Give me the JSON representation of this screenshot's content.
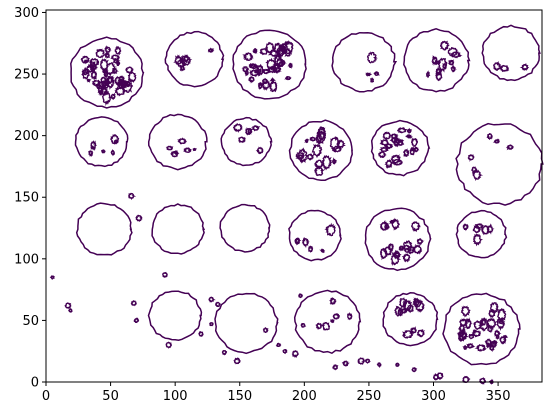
{
  "chart_data": {
    "type": "contour",
    "title": "",
    "xlabel": "",
    "ylabel": "",
    "xlim": [
      0,
      384
    ],
    "ylim": [
      0,
      302
    ],
    "xticks": [
      0,
      50,
      100,
      150,
      200,
      250,
      300,
      350
    ],
    "yticks": [
      0,
      50,
      100,
      150,
      200,
      250,
      300
    ],
    "grid": false,
    "line_color": "#440154",
    "series": [
      {
        "values": [
          {
            "cx": 47,
            "cy": 251,
            "r": 28,
            "dense": 48
          },
          {
            "cx": 115,
            "cy": 262,
            "r": 22,
            "dense": 6
          },
          {
            "cx": 173,
            "cy": 258,
            "r": 28,
            "dense": 40
          },
          {
            "cx": 246,
            "cy": 260,
            "r": 24,
            "dense": 4
          },
          {
            "cx": 302,
            "cy": 261,
            "r": 25,
            "dense": 12
          },
          {
            "cx": 360,
            "cy": 267,
            "r": 22,
            "dense": 3
          },
          {
            "cx": 43,
            "cy": 195,
            "r": 20,
            "dense": 6
          },
          {
            "cx": 102,
            "cy": 195,
            "r": 22,
            "dense": 6
          },
          {
            "cx": 155,
            "cy": 195,
            "r": 19,
            "dense": 6
          },
          {
            "cx": 213,
            "cy": 188,
            "r": 24,
            "dense": 18
          },
          {
            "cx": 274,
            "cy": 190,
            "r": 22,
            "dense": 22
          },
          {
            "cx": 351,
            "cy": 177,
            "r": 33,
            "dense": 6
          },
          {
            "cx": 45,
            "cy": 124,
            "r": 21,
            "dense": 0
          },
          {
            "cx": 102,
            "cy": 124,
            "r": 20,
            "dense": 0
          },
          {
            "cx": 154,
            "cy": 125,
            "r": 19,
            "dense": 0
          },
          {
            "cx": 208,
            "cy": 119,
            "r": 20,
            "dense": 6
          },
          {
            "cx": 272,
            "cy": 116,
            "r": 25,
            "dense": 18
          },
          {
            "cx": 337,
            "cy": 120,
            "r": 19,
            "dense": 6
          },
          {
            "cx": 100,
            "cy": 54,
            "r": 20,
            "dense": 0
          },
          {
            "cx": 155,
            "cy": 48,
            "r": 24,
            "dense": 0
          },
          {
            "cx": 218,
            "cy": 49,
            "r": 25,
            "dense": 6
          },
          {
            "cx": 282,
            "cy": 51,
            "r": 21,
            "dense": 12
          },
          {
            "cx": 337,
            "cy": 43,
            "r": 29,
            "dense": 34
          }
        ]
      }
    ]
  }
}
